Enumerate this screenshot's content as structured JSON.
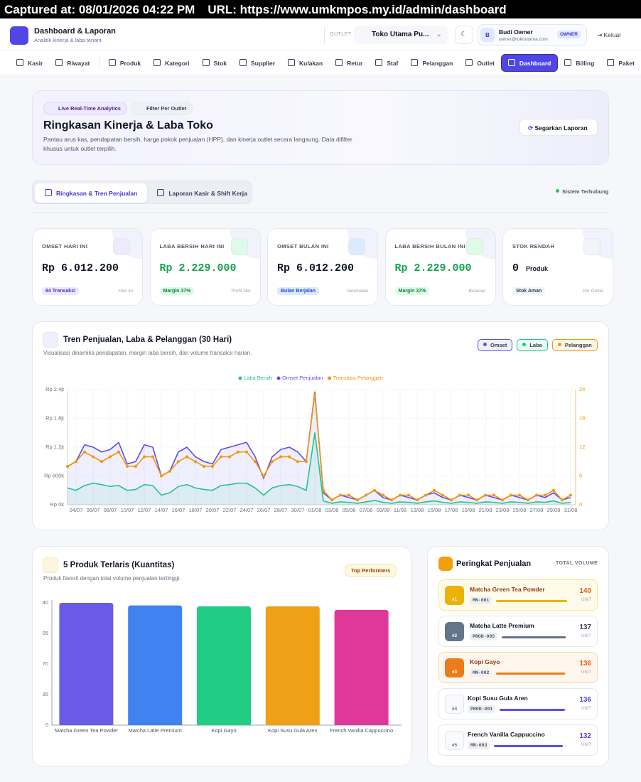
{
  "capture": {
    "captured_at": "Captured at: 08/01/2026 04:22 PM",
    "url": "URL: https://www.umkmpos.my.id/admin/dashboard"
  },
  "header": {
    "title": "Dashboard & Laporan",
    "subtitle": "Analitik kinerja & laba tenant",
    "outlet_label": "OUTLET",
    "outlet": "Toko Utama Pu...",
    "user_initial": "B",
    "user_name": "Budi Owner",
    "user_email": "owner@tokoutama.com",
    "role": "OWNER",
    "logout": "Keluar"
  },
  "nav": [
    {
      "label": "Kasir",
      "active": false
    },
    {
      "label": "Riwayat",
      "active": false
    },
    {
      "label": "Produk",
      "active": false
    },
    {
      "label": "Kategori",
      "active": false
    },
    {
      "label": "Stok",
      "active": false
    },
    {
      "label": "Supplier",
      "active": false
    },
    {
      "label": "Kulakan",
      "active": false
    },
    {
      "label": "Retur",
      "active": false
    },
    {
      "label": "Staf",
      "active": false
    },
    {
      "label": "Pelanggan",
      "active": false
    },
    {
      "label": "Outlet",
      "active": false
    },
    {
      "label": "Dashboard",
      "active": true
    },
    {
      "label": "Billing",
      "active": false
    },
    {
      "label": "Paket",
      "active": false
    }
  ],
  "hero": {
    "badges": [
      "Live Real-Time Analytics",
      "Filter Per Outlet"
    ],
    "title": "Ringkasan Kinerja & Laba Toko",
    "description": "Pantau arus kas, pendapatan bersih, harga pokok penjualan (HPP), dan kinerja outlet secara langsung. Data difilter khusus untuk outlet terpilih.",
    "button": "Segarkan Laporan"
  },
  "tabs": [
    {
      "label": "Ringkasan & Tren Penjualan",
      "active": true
    },
    {
      "label": "Laporan Kasir & Shift Kerja",
      "active": false
    }
  ],
  "status": "Sistem Terhubung",
  "stats": [
    {
      "label": "OMSET HARI INI",
      "value": "Rp 6.012.200",
      "badge": "84 Transaksi",
      "note": "Hari ini",
      "value_color": "#111827",
      "badge_bg": "#ede9fe",
      "badge_fg": "#4338ca"
    },
    {
      "label": "LABA BERSIH HARI INI",
      "value": "Rp 2.229.000",
      "badge": "Margin 37%",
      "note": "Profit Net",
      "value_color": "#16a34a",
      "badge_bg": "#dcfce7",
      "badge_fg": "#15803d"
    },
    {
      "label": "OMSET BULAN INI",
      "value": "Rp 6.012.200",
      "badge": "Bulan Berjalan",
      "note": "Akumulasi",
      "value_color": "#111827",
      "badge_bg": "#dbeafe",
      "badge_fg": "#1d4ed8"
    },
    {
      "label": "LABA BERSIH BULAN INI",
      "value": "Rp 2.229.000",
      "badge": "Margin 37%",
      "note": "Bulanan",
      "value_color": "#16a34a",
      "badge_bg": "#dcfce7",
      "badge_fg": "#15803d"
    },
    {
      "label": "STOK RENDAH",
      "value": "0",
      "unit": "Produk",
      "badge": "Stok Aman",
      "note": "Per Outlet",
      "value_color": "#111827",
      "badge_bg": "#f1f5f9",
      "badge_fg": "#334155"
    }
  ],
  "trend": {
    "title": "Tren Penjualan, Laba & Pelanggan (30 Hari)",
    "subtitle": "Visualisasi dinamika pendapatan, margin laba bersih, dan volume transaksi harian.",
    "toggles": [
      "Omset",
      "Laba",
      "Pelanggan"
    ]
  },
  "products": {
    "title": "5 Produk Terlaris (Kuantitas)",
    "subtitle": "Produk favorit dengan total volume penjualan tertinggi.",
    "badge": "Top Performers"
  },
  "ranking": {
    "title": "Peringkat Penjualan",
    "header": "TOTAL VOLUME",
    "unit": "UNIT",
    "items": [
      {
        "rank": "#1",
        "name": "Matcha Green Tea Powder",
        "code": "MN-001",
        "volume": 140,
        "color": "#eab308"
      },
      {
        "rank": "#2",
        "name": "Matcha Latte Premium",
        "code": "PROD-005",
        "volume": 137,
        "color": "#64748b"
      },
      {
        "rank": "#3",
        "name": "Kopi Gayo",
        "code": "MN-002",
        "volume": 136,
        "color": "#ea7c1a"
      },
      {
        "rank": "#4",
        "name": "Kopi Susu Gula Aren",
        "code": "PROD-001",
        "volume": 136,
        "color": "#5b50e8"
      },
      {
        "rank": "#5",
        "name": "French Vanilla Cappuccino",
        "code": "MN-003",
        "volume": 132,
        "color": "#5b50e8"
      }
    ]
  },
  "chart_data": [
    {
      "type": "line",
      "grid": true,
      "categories": [
        null,
        "04/07",
        null,
        "06/07",
        null,
        "08/07",
        null,
        "10/07",
        null,
        "12/07",
        null,
        "14/07",
        null,
        "16/07",
        null,
        "18/07",
        null,
        "20/07",
        null,
        "22/07",
        null,
        "24/07",
        null,
        "26/07",
        null,
        "28/07",
        null,
        "30/07",
        null,
        "01/08",
        null,
        "03/08",
        null,
        "05/08",
        null,
        "07/08",
        null,
        "09/08",
        null,
        "11/08",
        null,
        "13/08",
        null,
        "15/08",
        null,
        "17/08",
        null,
        "19/08",
        null,
        "21/08",
        null,
        "23/08",
        null,
        "25/08",
        null,
        "27/08",
        null,
        "29/08",
        null,
        "31/08"
      ],
      "series": [
        {
          "name": "Laba Bersih",
          "color": "#22c58b",
          "values": [
            350000,
            300000,
            400000,
            450000,
            420000,
            380000,
            400000,
            300000,
            320000,
            420000,
            400000,
            200000,
            250000,
            380000,
            420000,
            350000,
            320000,
            300000,
            400000,
            420000,
            450000,
            450000,
            350000,
            200000,
            350000,
            400000,
            420000,
            380000,
            300000,
            1500000,
            80000,
            30000,
            60000,
            50000,
            30000,
            60000,
            90000,
            50000,
            30000,
            60000,
            50000,
            30000,
            60000,
            80000,
            50000,
            30000,
            60000,
            50000,
            30000,
            60000,
            50000,
            30000,
            60000,
            50000,
            30000,
            60000,
            50000,
            80000,
            30000,
            50000
          ]
        },
        {
          "name": "Omset Penjualan",
          "color": "#5b50e8",
          "values": [
            800000,
            900000,
            1250000,
            1200000,
            1100000,
            1150000,
            1300000,
            850000,
            900000,
            1250000,
            1200000,
            600000,
            700000,
            1100000,
            1200000,
            1000000,
            900000,
            850000,
            1150000,
            1200000,
            1250000,
            1300000,
            1000000,
            550000,
            1000000,
            1150000,
            1200000,
            1100000,
            900000,
            2350000,
            250000,
            100000,
            200000,
            150000,
            100000,
            200000,
            300000,
            150000,
            100000,
            200000,
            150000,
            100000,
            200000,
            250000,
            150000,
            100000,
            200000,
            150000,
            100000,
            200000,
            150000,
            100000,
            200000,
            150000,
            100000,
            200000,
            150000,
            250000,
            100000,
            150000
          ]
        },
        {
          "name": "Transaksi Pelanggan",
          "color": "#f2960f",
          "axis": "y2",
          "values": [
            8,
            9,
            11,
            10,
            9,
            10,
            11,
            8,
            8,
            10,
            10,
            6,
            7,
            9,
            10,
            9,
            8,
            8,
            10,
            10,
            11,
            11,
            9,
            6,
            9,
            10,
            10,
            9,
            9,
            23,
            3,
            1,
            2,
            2,
            1,
            2,
            3,
            2,
            1,
            2,
            2,
            1,
            2,
            3,
            2,
            1,
            2,
            2,
            1,
            2,
            2,
            1,
            2,
            2,
            1,
            2,
            2,
            3,
            1,
            2
          ]
        }
      ],
      "ylim": [
        0,
        2400000
      ],
      "yticks": [
        {
          "value": 0,
          "label": "Rp 0k"
        },
        {
          "value": 600000,
          "label": "Rp 600k"
        },
        {
          "value": 1200000,
          "label": "Rp 1.2jt"
        },
        {
          "value": 1800000,
          "label": "Rp 1.8jt"
        },
        {
          "value": 2400000,
          "label": "Rp 2.4jt"
        }
      ],
      "y2lim": [
        0,
        24
      ],
      "y2ticks": [
        0,
        6,
        12,
        18,
        24
      ]
    },
    {
      "type": "bar",
      "categories": [
        "Matcha Green Tea Powder",
        "Matcha Latte Premium",
        "Kopi Gayo",
        "Kopi Susu Gula Aren",
        "French Vanilla Cappuccino"
      ],
      "values": [
        140,
        137,
        136,
        136,
        132
      ],
      "colors": [
        "#6a5ce9",
        "#3f82f0",
        "#22cc84",
        "#f0a017",
        "#e0389a"
      ],
      "ylim": [
        0,
        140
      ],
      "yticks": [
        0,
        35,
        70,
        {
          "value": 105,
          "label": "05"
        },
        {
          "value": 140,
          "label": "40"
        }
      ]
    }
  ]
}
